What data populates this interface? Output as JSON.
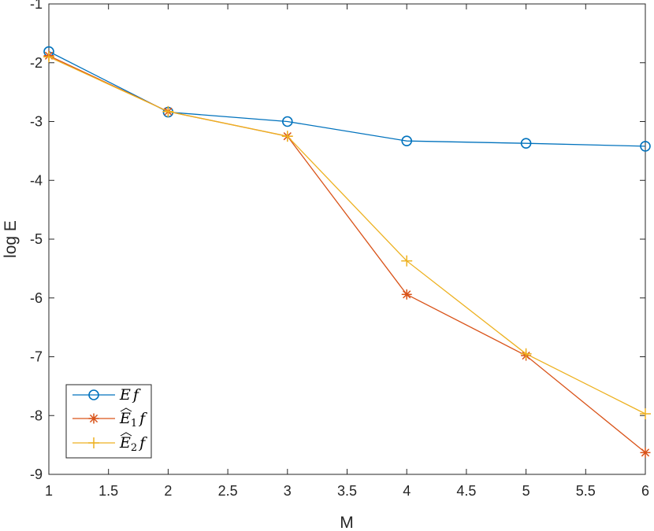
{
  "chart_data": {
    "type": "line",
    "x": [
      1,
      2,
      3,
      4,
      5,
      6
    ],
    "xlabel": "M",
    "ylabel": "log E",
    "xlim": [
      1,
      6
    ],
    "ylim": [
      -9,
      -1
    ],
    "xticks": [
      "1",
      "1.5",
      "2",
      "2.5",
      "3",
      "3.5",
      "4",
      "4.5",
      "5",
      "5.5",
      "6"
    ],
    "yticks": [
      "-1",
      "-2",
      "-3",
      "-4",
      "-5",
      "-6",
      "-7",
      "-8",
      "-9"
    ],
    "grid": false,
    "legend_position": "bottom-left",
    "series": [
      {
        "name": "Ef",
        "legend_main": "E",
        "legend_sub": "",
        "legend_tail": "f",
        "hat": false,
        "marker": "circle",
        "color": "#0072BD",
        "values": [
          -1.81,
          -2.84,
          -3.0,
          -3.33,
          -3.37,
          -3.42
        ]
      },
      {
        "name": "Ê1f",
        "legend_main": "E",
        "legend_sub": "1",
        "legend_tail": "f",
        "hat": true,
        "marker": "asterisk",
        "color": "#D95319",
        "values": [
          -1.88,
          -2.83,
          -3.25,
          -5.94,
          -6.98,
          -8.63
        ]
      },
      {
        "name": "Ê2f",
        "legend_main": "E",
        "legend_sub": "2",
        "legend_tail": "f",
        "hat": true,
        "marker": "plus",
        "color": "#EDB120",
        "values": [
          -1.9,
          -2.83,
          -3.25,
          -5.37,
          -6.95,
          -7.97
        ]
      }
    ]
  }
}
